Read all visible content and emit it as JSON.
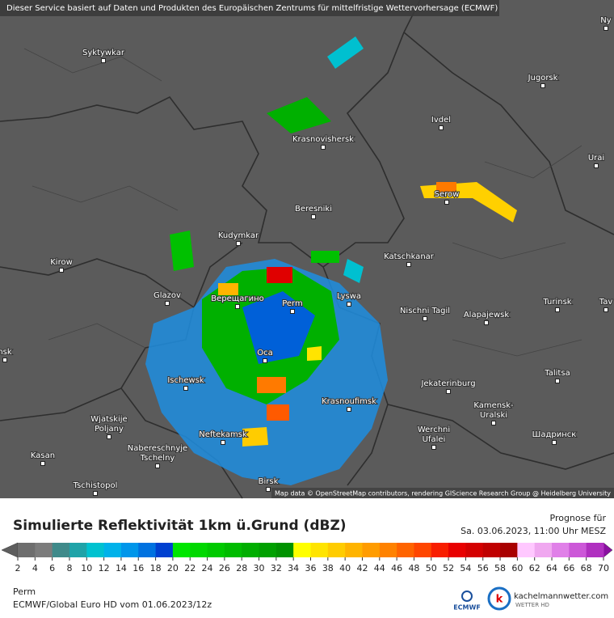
{
  "header": {
    "notice": "Dieser Service basiert auf Daten und Produkten des Europäischen Zentrums für mittelfristige Wettervorhersage (ECMWF)"
  },
  "map": {
    "cities": [
      {
        "lines": [
          "Ny"
        ]
      },
      {
        "lines": [
          "Syktywkar"
        ]
      },
      {
        "lines": [
          "Jugorsk"
        ]
      },
      {
        "lines": [
          "Ivdel"
        ]
      },
      {
        "lines": [
          "Krasnovishersk"
        ]
      },
      {
        "lines": [
          "Urai"
        ]
      },
      {
        "lines": [
          "Serow"
        ]
      },
      {
        "lines": [
          "Beresniki"
        ]
      },
      {
        "lines": [
          "Kudymkar"
        ]
      },
      {
        "lines": [
          "Katschkanar"
        ]
      },
      {
        "lines": [
          "Kirow"
        ]
      },
      {
        "lines": [
          "Glazov"
        ]
      },
      {
        "lines": [
          "Верещагино"
        ]
      },
      {
        "lines": [
          "Perm"
        ]
      },
      {
        "lines": [
          "Lyswa"
        ]
      },
      {
        "lines": [
          "Nischni Tagil"
        ]
      },
      {
        "lines": [
          "Alapajewsk"
        ]
      },
      {
        "lines": [
          "Turinsk"
        ]
      },
      {
        "lines": [
          "Tav"
        ]
      },
      {
        "lines": [
          "nsk"
        ]
      },
      {
        "lines": [
          "Oca"
        ]
      },
      {
        "lines": [
          "Talitsa"
        ]
      },
      {
        "lines": [
          "Ischewsk"
        ]
      },
      {
        "lines": [
          "Jekaterinburg"
        ]
      },
      {
        "lines": [
          "Krasnoufimsk"
        ]
      },
      {
        "lines": [
          "Kamensk-",
          "Uralski"
        ]
      },
      {
        "lines": [
          "Wjatskije",
          "Poljany"
        ]
      },
      {
        "lines": [
          "Neftekamsk"
        ]
      },
      {
        "lines": [
          "Werchni",
          "Ufalei"
        ]
      },
      {
        "lines": [
          "Шадринск"
        ]
      },
      {
        "lines": [
          "Nabereschnyje",
          "Tschelny"
        ]
      },
      {
        "lines": [
          "Kasan"
        ]
      },
      {
        "lines": [
          "Birsk"
        ]
      },
      {
        "lines": [
          "Tschistopol"
        ]
      }
    ],
    "attribution": "Map data © OpenStreetMap contributors, rendering GIScience Research Group @ Heidelberg University"
  },
  "legend": {
    "title": "Simulierte Reflektivität 1km ü.Grund (dBZ)",
    "forecast_label": "Prognose für",
    "forecast_time": "Sa. 03.06.2023, 11:00 Uhr MESZ",
    "ticks": [
      2,
      4,
      6,
      8,
      10,
      12,
      14,
      16,
      18,
      20,
      22,
      24,
      26,
      28,
      30,
      32,
      34,
      36,
      38,
      40,
      42,
      44,
      46,
      48,
      50,
      52,
      54,
      56,
      58,
      60,
      62,
      64,
      66,
      68,
      70
    ],
    "under_color": "#5e5e5e",
    "over_color": "#8a10a0",
    "colors": [
      "#6e6e6e",
      "#7c7c7c",
      "#3f8a8a",
      "#1fa3a8",
      "#00c2d0",
      "#00b2ea",
      "#0096ea",
      "#0072e0",
      "#0040d0",
      "#00e600",
      "#00d800",
      "#00ca00",
      "#00bc00",
      "#00ae00",
      "#00a000",
      "#009200",
      "#ffff00",
      "#ffe400",
      "#ffcc00",
      "#ffb400",
      "#ff9c00",
      "#ff8200",
      "#ff6400",
      "#ff4600",
      "#f81e00",
      "#e80000",
      "#d40000",
      "#c00000",
      "#a80000",
      "#ffc8ff",
      "#f0a8f0",
      "#e080e8",
      "#cc58d8",
      "#b030c0"
    ]
  },
  "footer": {
    "location": "Perm",
    "model": "ECMWF/Global Euro HD vom  01.06.2023/12z",
    "ecmwf_logo": "ECMWF",
    "site": "kachelmannwetter.com",
    "site_sub": "WETTER HD"
  }
}
